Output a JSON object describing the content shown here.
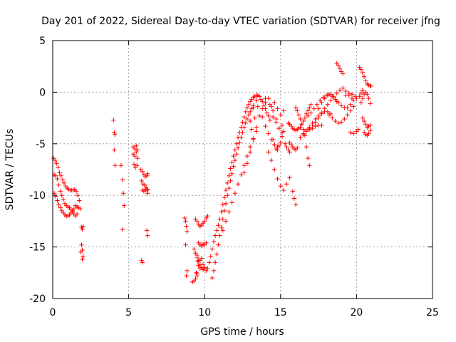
{
  "chart_data": {
    "type": "scatter",
    "title": "Day 201 of 2022, Sidereal Day-to-day VTEC variation (SDTVAR) for receiver jfng",
    "xlabel": "GPS time / hours",
    "ylabel": "SDTVAR / TECUs",
    "xlim": [
      0,
      25
    ],
    "ylim": [
      -20,
      5
    ],
    "xticks": [
      0,
      5,
      10,
      15,
      20,
      25
    ],
    "yticks": [
      -20,
      -15,
      -10,
      -5,
      0,
      5
    ],
    "xtick_labels": [
      "0",
      "5",
      "10",
      "15",
      "20",
      "25"
    ],
    "ytick_labels": [
      "-20",
      "-15",
      "-10",
      "-5",
      "0",
      "5"
    ],
    "grid": true,
    "marker": "+",
    "color": "#ff0000",
    "series": [
      {
        "name": "SDTVAR",
        "x": [
          0.05,
          0.15,
          0.25,
          0.35,
          0.45,
          0.55,
          0.65,
          0.75,
          0.85,
          0.95,
          1.05,
          1.15,
          1.25,
          1.35,
          1.45,
          1.55,
          1.65,
          1.75,
          0.1,
          0.2,
          0.3,
          0.4,
          0.5,
          0.6,
          0.7,
          0.8,
          0.9,
          1.0,
          1.1,
          1.2,
          1.3,
          1.4,
          1.5,
          1.6,
          1.7,
          1.8,
          0.1,
          0.2,
          0.3,
          0.4,
          0.5,
          0.6,
          0.7,
          0.8,
          0.9,
          1.0,
          1.1,
          1.2,
          1.3,
          1.4,
          1.5,
          1.6,
          1.9,
          1.95,
          2.0,
          1.9,
          1.95,
          2.0,
          1.85,
          1.95,
          4.0,
          4.05,
          4.1,
          4.05,
          4.1,
          4.5,
          4.6,
          4.65,
          4.7,
          4.6,
          5.3,
          5.4,
          5.5,
          5.6,
          5.3,
          5.4,
          5.5,
          5.6,
          5.35,
          5.45,
          5.55,
          5.8,
          5.9,
          6.0,
          6.1,
          6.2,
          6.25,
          5.85,
          5.95,
          6.05,
          6.15,
          6.25,
          5.9,
          6.0,
          6.1,
          6.2,
          6.25,
          6.2,
          6.25,
          5.85,
          5.9,
          8.7,
          8.75,
          8.8,
          8.85,
          8.75,
          8.85,
          8.8,
          9.2,
          9.3,
          9.4,
          9.5,
          9.6,
          9.7,
          9.8,
          9.9,
          10.0,
          10.1,
          9.4,
          9.5,
          9.6,
          9.7,
          9.8,
          9.9,
          10.0,
          10.1,
          10.2,
          9.6,
          9.7,
          9.8,
          9.9,
          10.0,
          10.1,
          9.5,
          9.6,
          9.7,
          9.8,
          9.9,
          10.0,
          9.3,
          9.4,
          9.5,
          9.55,
          9.6,
          9.7,
          9.45,
          9.5,
          10.2,
          10.3,
          10.4,
          10.5,
          10.6,
          10.7,
          10.8,
          10.9,
          11.0,
          11.1,
          11.2,
          11.3,
          11.4,
          11.5,
          11.6,
          11.7,
          11.8,
          11.9,
          12.0,
          12.1,
          12.2,
          12.3,
          12.4,
          12.5,
          12.6,
          12.7,
          12.8,
          12.9,
          13.0,
          13.1,
          13.2,
          13.3,
          13.4,
          13.5,
          13.6,
          10.5,
          10.6,
          10.7,
          10.8,
          10.9,
          11.0,
          11.1,
          11.2,
          11.3,
          11.4,
          11.5,
          11.6,
          11.7,
          11.8,
          11.9,
          12.0,
          12.1,
          12.2,
          12.3,
          12.4,
          12.5,
          12.6,
          12.7,
          12.8,
          12.9,
          13.0,
          13.1,
          13.2,
          11.2,
          11.4,
          11.6,
          11.8,
          12.0,
          12.2,
          12.4,
          12.6,
          12.8,
          13.0,
          13.2,
          13.4,
          13.0,
          13.2,
          13.4,
          13.6,
          13.8,
          14.0,
          14.2,
          14.4,
          14.6,
          14.8,
          15.0,
          15.2,
          13.1,
          13.3,
          13.5,
          13.7,
          13.9,
          14.1,
          14.3,
          14.5,
          14.7,
          14.9,
          15.1,
          12.6,
          12.8,
          13.0,
          13.2,
          13.4,
          13.6,
          13.8,
          14.0,
          14.2,
          13.8,
          14.0,
          14.2,
          14.4,
          14.6,
          14.8,
          14.2,
          14.4,
          14.6,
          14.8,
          15.0,
          15.2,
          15.4,
          15.6,
          14.5,
          14.6,
          14.7,
          14.8,
          14.9,
          15.0,
          15.1,
          15.2,
          14.0,
          14.3,
          14.5,
          14.7,
          14.9,
          15.1,
          15.5,
          15.6,
          15.7,
          15.8,
          15.9,
          16.0,
          16.1,
          16.2,
          16.3,
          16.4,
          16.5,
          16.6,
          16.7,
          16.8,
          16.9,
          17.0,
          15.6,
          15.7,
          15.8,
          15.9,
          16.0,
          16.1,
          15.8,
          15.9,
          16.0,
          15.3,
          15.4,
          15.5,
          15.6,
          16.0,
          16.1,
          16.2,
          16.3,
          16.4,
          16.5,
          16.6,
          16.7,
          16.8,
          16.9,
          16.3,
          16.5,
          16.7,
          16.9,
          17.1,
          17.3,
          17.5,
          17.7,
          16.8,
          17.0,
          17.2,
          17.4,
          17.6,
          17.8,
          18.0,
          18.2,
          18.4,
          18.6,
          18.8,
          19.0,
          19.2,
          19.4,
          19.6,
          19.8,
          16.9,
          17.1,
          17.3,
          17.5,
          17.7,
          17.9,
          18.1,
          18.3,
          18.5,
          18.7,
          18.9,
          19.1,
          19.3,
          19.5,
          19.7,
          16.5,
          16.7,
          16.9,
          17.1,
          17.3,
          17.5,
          17.7,
          17.9,
          18.1,
          18.3,
          17.5,
          17.7,
          17.9,
          18.1,
          18.3,
          18.5,
          18.7,
          18.2,
          18.4,
          18.6,
          18.8,
          19.0,
          19.2,
          19.4,
          19.6,
          19.8,
          18.7,
          18.8,
          18.9,
          19.0,
          19.1,
          19.3,
          19.5,
          19.7,
          19.9,
          20.0,
          19.6,
          19.8,
          20.0,
          20.1,
          20.2,
          20.3,
          20.4,
          20.5,
          20.6,
          20.7,
          20.8,
          20.9,
          20.95,
          20.3,
          20.4,
          20.5,
          20.6,
          20.7,
          20.8,
          20.9,
          20.4,
          20.5,
          20.6,
          20.7,
          20.8,
          20.9,
          20.5,
          20.6,
          20.7,
          20.8,
          20.9,
          20.2,
          20.3,
          20.4
        ],
        "y": [
          -6.4,
          -6.6,
          -6.9,
          -7.3,
          -7.8,
          -8.1,
          -8.5,
          -8.8,
          -9.1,
          -9.3,
          -9.4,
          -9.5,
          -9.5,
          -9.5,
          -9.4,
          -9.6,
          -10.0,
          -10.5,
          -8.0,
          -8.1,
          -8.4,
          -9.0,
          -9.6,
          -10.0,
          -10.4,
          -10.8,
          -11.0,
          -11.1,
          -11.2,
          -11.4,
          -11.5,
          -11.3,
          -11.0,
          -11.1,
          -11.2,
          -11.3,
          -9.8,
          -10.1,
          -10.5,
          -10.9,
          -11.2,
          -11.5,
          -11.7,
          -11.9,
          -12.0,
          -12.0,
          -11.9,
          -11.7,
          -11.6,
          -11.8,
          -12.0,
          -11.8,
          -13.1,
          -13.3,
          -13.0,
          -14.8,
          -15.3,
          -15.9,
          -15.5,
          -16.2,
          -2.7,
          -3.9,
          -4.1,
          -5.6,
          -7.1,
          -7.1,
          -8.5,
          -9.8,
          -11.0,
          -13.3,
          -5.3,
          -5.5,
          -5.2,
          -5.6,
          -6.0,
          -6.2,
          -5.8,
          -6.4,
          -7.0,
          -7.3,
          -7.1,
          -7.5,
          -7.7,
          -8.0,
          -8.2,
          -8.1,
          -7.9,
          -8.6,
          -8.9,
          -9.0,
          -9.2,
          -9.4,
          -9.5,
          -9.6,
          -9.4,
          -9.5,
          -9.8,
          -13.4,
          -13.9,
          -16.3,
          -16.5,
          -12.2,
          -12.5,
          -13.0,
          -13.5,
          -14.8,
          -17.3,
          -17.8,
          -18.4,
          -18.3,
          -18.1,
          -17.6,
          -16.8,
          -16.3,
          -16.1,
          -16.7,
          -17.1,
          -17.3,
          -12.3,
          -12.5,
          -12.8,
          -13.0,
          -12.9,
          -12.7,
          -12.5,
          -12.2,
          -12.0,
          -14.6,
          -14.8,
          -14.9,
          -14.7,
          -14.8,
          -14.6,
          -15.8,
          -16.3,
          -16.7,
          -17.0,
          -17.2,
          -17.0,
          -15.2,
          -15.6,
          -16.0,
          -16.4,
          -16.8,
          -17.1,
          -17.5,
          -17.8,
          -17.1,
          -16.5,
          -15.9,
          -15.2,
          -14.5,
          -13.9,
          -13.4,
          -12.9,
          -12.3,
          -11.6,
          -10.9,
          -10.2,
          -9.5,
          -8.8,
          -8.1,
          -7.4,
          -6.8,
          -6.2,
          -5.6,
          -5.0,
          -4.4,
          -3.9,
          -3.4,
          -2.9,
          -2.4,
          -1.9,
          -1.5,
          -1.2,
          -0.9,
          -0.7,
          -0.5,
          -0.4,
          -0.3,
          -0.3,
          -0.4,
          -18.0,
          -17.3,
          -16.5,
          -15.7,
          -14.8,
          -13.9,
          -13.1,
          -12.3,
          -11.5,
          -10.8,
          -10.0,
          -9.3,
          -8.6,
          -7.9,
          -7.2,
          -6.6,
          -6.0,
          -5.4,
          -4.9,
          -4.4,
          -3.9,
          -3.4,
          -3.0,
          -2.6,
          -2.2,
          -1.9,
          -1.6,
          -1.3,
          -13.4,
          -12.5,
          -11.6,
          -10.7,
          -9.8,
          -8.9,
          -8.0,
          -7.1,
          -6.2,
          -5.3,
          -4.5,
          -3.8,
          -2.8,
          -1.5,
          -0.8,
          -0.4,
          -0.9,
          -1.6,
          -2.3,
          -1.4,
          -1.0,
          -1.6,
          -2.2,
          -1.8,
          -3.6,
          -2.5,
          -1.4,
          -0.7,
          -1.3,
          -2.0,
          -2.7,
          -2.4,
          -2.9,
          -3.5,
          -3.9,
          -7.8,
          -6.9,
          -5.8,
          -4.6,
          -3.4,
          -2.3,
          -1.6,
          -1.0,
          -0.6,
          -2.4,
          -3.3,
          -4.0,
          -4.6,
          -5.1,
          -5.3,
          -5.8,
          -6.6,
          -7.5,
          -8.4,
          -9.1,
          -9.5,
          -8.9,
          -8.3,
          -4.6,
          -5.1,
          -5.5,
          -5.6,
          -5.2,
          -4.9,
          -4.3,
          -3.8,
          -0.6,
          -1.2,
          -1.8,
          -2.6,
          -3.5,
          -3.2,
          -3.0,
          -3.1,
          -3.3,
          -3.5,
          -3.6,
          -3.7,
          -3.6,
          -3.5,
          -3.4,
          -3.1,
          -2.8,
          -2.5,
          -2.1,
          -1.8,
          -1.5,
          -1.2,
          -4.9,
          -5.1,
          -5.3,
          -5.5,
          -5.6,
          -5.4,
          -9.6,
          -10.3,
          -10.9,
          -5.0,
          -5.3,
          -5.6,
          -5.8,
          -1.5,
          -1.8,
          -2.2,
          -2.6,
          -3.1,
          -3.6,
          -4.2,
          -5.3,
          -6.4,
          -7.1,
          -4.4,
          -4.1,
          -3.8,
          -3.6,
          -3.5,
          -3.3,
          -3.2,
          -3.2,
          -2.3,
          -2.0,
          -1.6,
          -1.2,
          -0.8,
          -0.5,
          -0.3,
          -0.2,
          -0.4,
          -0.7,
          -1.0,
          -1.3,
          -1.5,
          -1.5,
          -1.2,
          -0.8,
          -3.5,
          -3.2,
          -2.9,
          -2.5,
          -2.0,
          -1.6,
          -1.2,
          -0.8,
          -0.4,
          -0.1,
          0.2,
          0.4,
          0.1,
          -0.3,
          -0.6,
          -4.0,
          -3.7,
          -3.4,
          -3.0,
          -2.6,
          -2.3,
          -2.1,
          -1.9,
          -1.9,
          -2.1,
          -1.6,
          -1.0,
          -0.6,
          -0.3,
          -0.2,
          -0.5,
          -0.9,
          -2.2,
          -2.5,
          -2.8,
          -3.0,
          -2.9,
          -2.6,
          -2.2,
          -1.8,
          -1.4,
          2.8,
          2.6,
          2.3,
          2.0,
          1.8,
          -0.3,
          -0.1,
          -0.2,
          -0.4,
          -0.6,
          -3.9,
          -4.0,
          -3.8,
          -3.6,
          2.4,
          2.2,
          1.9,
          1.5,
          1.1,
          0.8,
          0.7,
          0.6,
          0.6,
          -1.0,
          -0.6,
          -0.2,
          0.0,
          -0.2,
          -0.6,
          -1.1,
          -2.5,
          -2.8,
          -3.1,
          -3.4,
          -3.3,
          -3.2,
          -3.9,
          -4.1,
          -4.2,
          -4.0,
          -3.7,
          -0.4,
          -0.1,
          0.2
        ]
      }
    ]
  }
}
